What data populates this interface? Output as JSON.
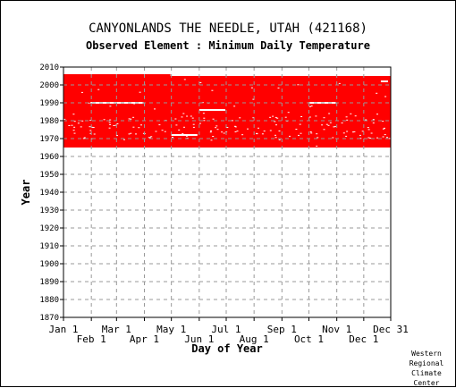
{
  "title": "CANYONLANDS THE NEEDLE, UTAH   (421168)",
  "subtitle": "Observed Element : Minimum Daily Temperature",
  "credit": [
    "Western",
    "Regional",
    "Climate",
    "Center"
  ],
  "chart_data": {
    "type": "heatmap",
    "xlabel": "Day of Year",
    "ylabel": "Year",
    "xlim": [
      1,
      365
    ],
    "ylim": [
      1870,
      2010
    ],
    "grid": true,
    "x_ticks_upper": [
      {
        "label": "Jan 1",
        "day": 1
      },
      {
        "label": "Mar 1",
        "day": 60
      },
      {
        "label": "May 1",
        "day": 121
      },
      {
        "label": "Jul 1",
        "day": 182
      },
      {
        "label": "Sep 1",
        "day": 244
      },
      {
        "label": "Nov 1",
        "day": 305
      },
      {
        "label": "Dec 31",
        "day": 365
      }
    ],
    "x_ticks_lower": [
      {
        "label": "Feb 1",
        "day": 32
      },
      {
        "label": "Apr 1",
        "day": 91
      },
      {
        "label": "Jun 1",
        "day": 152
      },
      {
        "label": "Aug 1",
        "day": 213
      },
      {
        "label": "Oct 1",
        "day": 274
      },
      {
        "label": "Dec 1",
        "day": 335
      }
    ],
    "y_ticks": [
      1870,
      1880,
      1890,
      1900,
      1910,
      1920,
      1930,
      1940,
      1950,
      1960,
      1970,
      1980,
      1990,
      2000,
      2010
    ],
    "colors": {
      "observed": "#ff0000",
      "missing": "#ffffff",
      "grid": "#999999"
    },
    "observed_blocks": [
      {
        "year_start": 1965,
        "year_end": 2005,
        "day_start": 1,
        "day_end": 365
      },
      {
        "year_start": 2005,
        "year_end": 2006,
        "day_start": 1,
        "day_end": 120
      }
    ],
    "missing_segments": [
      {
        "year": 1990,
        "day_start": 31,
        "day_end": 90
      },
      {
        "year": 1986,
        "day_start": 152,
        "day_end": 181
      },
      {
        "year": 1972,
        "day_start": 121,
        "day_end": 150
      },
      {
        "year": 1990,
        "day_start": 274,
        "day_end": 304
      },
      {
        "year": 2002,
        "day_start": 354,
        "day_end": 362
      }
    ]
  }
}
